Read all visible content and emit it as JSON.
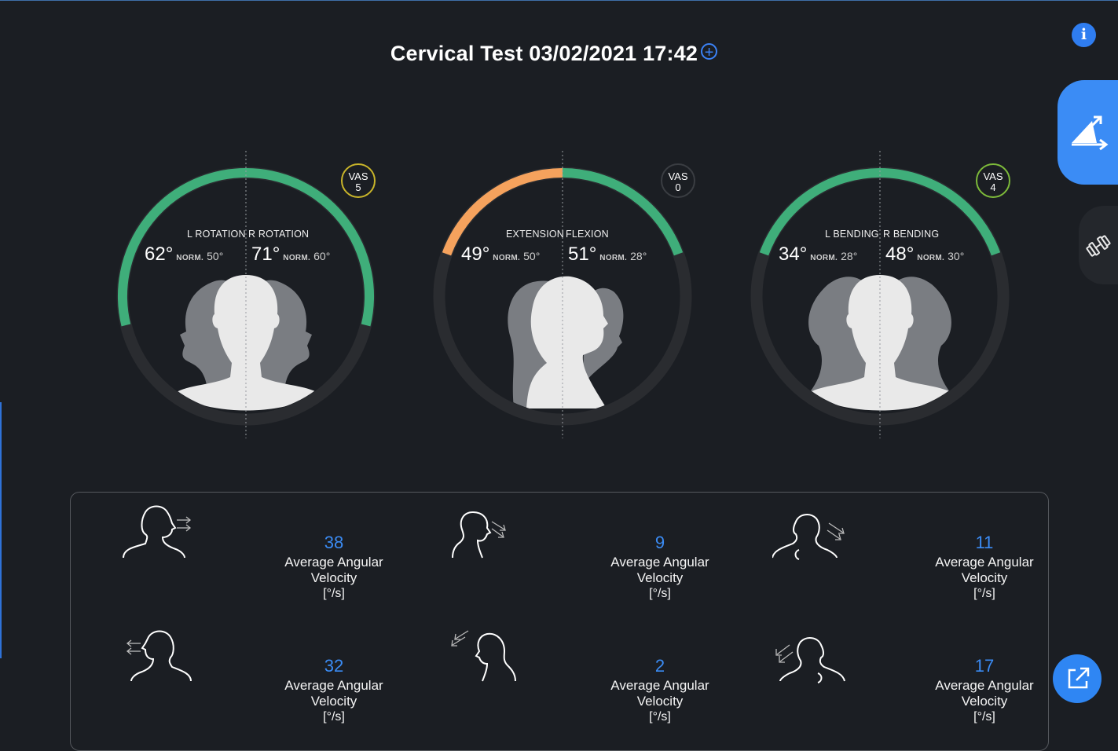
{
  "header": {
    "title": "Cervical Test 03/02/2021 17:42",
    "add_icon": "plus-circle-icon"
  },
  "buttons": {
    "info_label": "i"
  },
  "side_tabs": [
    {
      "icon": "angle-measure-icon",
      "active": true
    },
    {
      "icon": "dumbbell-icon",
      "active": false
    }
  ],
  "gauges": [
    {
      "left_label": "L ROTATION",
      "right_label": "R ROTATION",
      "left_value": "62°",
      "left_norm": "50°",
      "right_value": "71°",
      "right_norm": "60°",
      "norm_label": "NORM.",
      "vas_label": "VAS",
      "vas_value": "5",
      "left_fraction": 0.74,
      "right_fraction": 0.74,
      "left_color": "#3fae7a",
      "right_color": "#3fae7a",
      "vas_ring_color": "#c9b52a"
    },
    {
      "left_label": "EXTENSION",
      "right_label": "FLEXION",
      "left_value": "49°",
      "left_norm": "50°",
      "right_value": "51°",
      "right_norm": "28°",
      "norm_label": "NORM.",
      "vas_label": "VAS",
      "vas_value": "0",
      "left_fraction": 0.5,
      "right_fraction": 0.5,
      "left_color": "#f5a25d",
      "right_color": "#3fae7a",
      "vas_ring_color": "#3a3d42"
    },
    {
      "left_label": "L BENDING",
      "right_label": "R BENDING",
      "left_value": "34°",
      "left_norm": "28°",
      "right_value": "48°",
      "right_norm": "30°",
      "norm_label": "NORM.",
      "vas_label": "VAS",
      "vas_value": "4",
      "left_fraction": 0.5,
      "right_fraction": 0.5,
      "left_color": "#3fae7a",
      "right_color": "#3fae7a",
      "vas_ring_color": "#7dba3a"
    }
  ],
  "velocities": [
    {
      "value": "38",
      "label": "Average Angular Velocity",
      "unit": "[°/s]",
      "icon": "head-rotate-right-icon"
    },
    {
      "value": "9",
      "label": "Average Angular Velocity",
      "unit": "[°/s]",
      "icon": "head-flexion-icon"
    },
    {
      "value": "11",
      "label": "Average Angular Velocity",
      "unit": "[°/s]",
      "icon": "head-bend-right-icon"
    },
    {
      "value": "32",
      "label": "Average Angular Velocity",
      "unit": "[°/s]",
      "icon": "head-rotate-left-icon"
    },
    {
      "value": "2",
      "label": "Average Angular Velocity",
      "unit": "[°/s]",
      "icon": "head-extension-icon"
    },
    {
      "value": "17",
      "label": "Average Angular Velocity",
      "unit": "[°/s]",
      "icon": "head-bend-left-icon"
    }
  ],
  "export_icon": "external-link-icon",
  "colors": {
    "background": "#1b1e23",
    "accent": "#3b8cf5",
    "good": "#3fae7a",
    "warn": "#f5a25d"
  }
}
